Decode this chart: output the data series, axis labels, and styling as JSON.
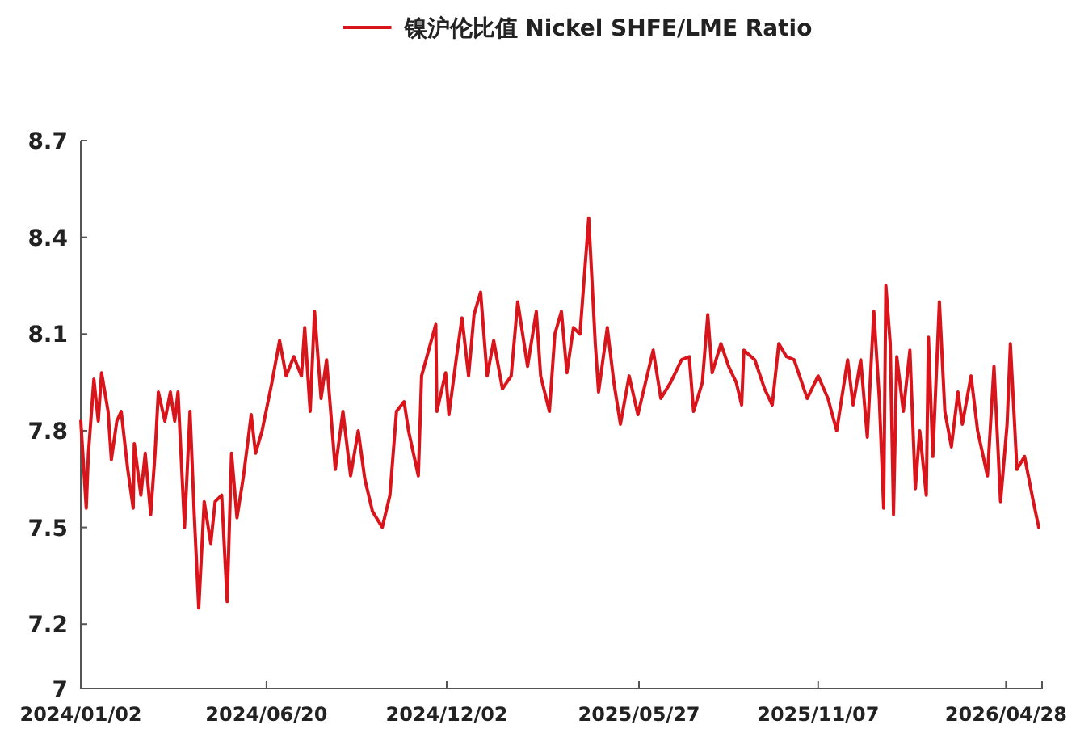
{
  "chart_data": {
    "type": "line",
    "legend": "top",
    "xlim": [
      "2024-01-02",
      "2026-05-31"
    ],
    "ylim": [
      7,
      8.7
    ],
    "xticks": [
      {
        "value": "2024-01-02",
        "label": "2024/01/02"
      },
      {
        "value": "2024-06-20",
        "label": "2024/06/20"
      },
      {
        "value": "2024-12-02",
        "label": "2024/12/02"
      },
      {
        "value": "2025-05-27",
        "label": "2025/05/27"
      },
      {
        "value": "2025-11-07",
        "label": "2025/11/07"
      },
      {
        "value": "2026-04-28",
        "label": "2026/04/28"
      }
    ],
    "yticks": [
      7,
      7.2,
      7.5,
      7.8,
      8.1,
      8.4,
      8.7
    ],
    "series": [
      {
        "name": "镍沪伦比值 Nickel SHFE/LME Ratio",
        "color": "#d9141b",
        "x": [
          "2024-01-02",
          "2024-01-07",
          "2024-01-09",
          "2024-01-14",
          "2024-01-18",
          "2024-01-21",
          "2024-01-27",
          "2024-01-30",
          "2024-02-04",
          "2024-02-08",
          "2024-02-14",
          "2024-02-19",
          "2024-02-20",
          "2024-02-26",
          "2024-03-01",
          "2024-03-06",
          "2024-03-10",
          "2024-03-13",
          "2024-03-19",
          "2024-03-24",
          "2024-03-28",
          "2024-03-31",
          "2024-04-06",
          "2024-04-11",
          "2024-04-15",
          "2024-04-19",
          "2024-04-24",
          "2024-04-30",
          "2024-05-04",
          "2024-05-10",
          "2024-05-15",
          "2024-05-19",
          "2024-05-24",
          "2024-05-30",
          "2024-06-06",
          "2024-06-10",
          "2024-06-16",
          "2024-06-25",
          "2024-07-02",
          "2024-07-08",
          "2024-07-15",
          "2024-07-22",
          "2024-07-25",
          "2024-07-30",
          "2024-08-03",
          "2024-08-09",
          "2024-08-14",
          "2024-08-22",
          "2024-08-29",
          "2024-09-05",
          "2024-09-12",
          "2024-09-18",
          "2024-09-25",
          "2024-10-04",
          "2024-10-11",
          "2024-10-17",
          "2024-10-24",
          "2024-10-28",
          "2024-11-06",
          "2024-11-09",
          "2024-11-22",
          "2024-11-23",
          "2024-12-01",
          "2024-12-04",
          "2024-12-11",
          "2024-12-16",
          "2024-12-22",
          "2024-12-27",
          "2025-01-02",
          "2025-01-08",
          "2025-01-14",
          "2025-01-22",
          "2025-01-30",
          "2025-02-05",
          "2025-02-14",
          "2025-02-22",
          "2025-02-26",
          "2025-03-06",
          "2025-03-11",
          "2025-03-17",
          "2025-03-22",
          "2025-03-28",
          "2025-04-03",
          "2025-04-11",
          "2025-04-17",
          "2025-04-20",
          "2025-04-28",
          "2025-05-04",
          "2025-05-10",
          "2025-05-18",
          "2025-05-26",
          "2025-06-02",
          "2025-06-09",
          "2025-06-16",
          "2025-06-25",
          "2025-07-05",
          "2025-07-12",
          "2025-07-16",
          "2025-07-24",
          "2025-07-29",
          "2025-08-02",
          "2025-08-10",
          "2025-08-17",
          "2025-08-24",
          "2025-08-29",
          "2025-08-31",
          "2025-09-10",
          "2025-09-19",
          "2025-09-26",
          "2025-10-02",
          "2025-10-09",
          "2025-10-16",
          "2025-10-28",
          "2025-11-07",
          "2025-11-16",
          "2025-11-24",
          "2025-12-04",
          "2025-12-09",
          "2025-12-16",
          "2025-12-22",
          "2025-12-28",
          "2026-01-02",
          "2026-01-06",
          "2026-01-08",
          "2026-01-12",
          "2026-01-15",
          "2026-01-18",
          "2026-01-24",
          "2026-01-30",
          "2026-02-04",
          "2026-02-08",
          "2026-02-14",
          "2026-02-16",
          "2026-02-20",
          "2026-02-26",
          "2026-03-03",
          "2026-03-09",
          "2026-03-15",
          "2026-03-19",
          "2026-03-27",
          "2026-04-02",
          "2026-04-11",
          "2026-04-17",
          "2026-04-23",
          "2026-04-29",
          "2026-05-02",
          "2026-05-08",
          "2026-05-15",
          "2026-05-23",
          "2026-05-28"
        ],
        "values": [
          7.83,
          7.56,
          7.73,
          7.96,
          7.83,
          7.98,
          7.86,
          7.71,
          7.83,
          7.86,
          7.68,
          7.56,
          7.76,
          7.6,
          7.73,
          7.54,
          7.73,
          7.92,
          7.83,
          7.92,
          7.83,
          7.92,
          7.5,
          7.86,
          7.53,
          7.25,
          7.58,
          7.45,
          7.58,
          7.6,
          7.27,
          7.73,
          7.53,
          7.66,
          7.85,
          7.73,
          7.8,
          7.95,
          8.08,
          7.97,
          8.03,
          7.97,
          8.12,
          7.86,
          8.17,
          7.9,
          8.02,
          7.68,
          7.86,
          7.66,
          7.8,
          7.65,
          7.55,
          7.5,
          7.6,
          7.86,
          7.89,
          7.8,
          7.66,
          7.97,
          8.13,
          7.86,
          7.98,
          7.85,
          8.03,
          8.15,
          7.97,
          8.16,
          8.23,
          7.97,
          8.08,
          7.93,
          7.97,
          8.2,
          8.0,
          8.17,
          7.97,
          7.86,
          8.1,
          8.17,
          7.98,
          8.12,
          8.1,
          8.46,
          8.07,
          7.92,
          8.12,
          7.95,
          7.82,
          7.97,
          7.85,
          7.95,
          8.05,
          7.9,
          7.95,
          8.02,
          8.03,
          7.86,
          7.95,
          8.16,
          7.98,
          8.07,
          8.0,
          7.95,
          7.88,
          8.05,
          8.02,
          7.93,
          7.88,
          8.07,
          8.03,
          8.02,
          7.9,
          7.97,
          7.9,
          7.8,
          8.02,
          7.88,
          8.02,
          7.78,
          8.17,
          7.9,
          7.56,
          8.25,
          8.07,
          7.54,
          8.03,
          7.86,
          8.05,
          7.62,
          7.8,
          7.6,
          8.09,
          7.72,
          8.2,
          7.86,
          7.75,
          7.92,
          7.82,
          7.97,
          7.8,
          7.66,
          8.0,
          7.58,
          7.82,
          8.07,
          7.68,
          7.72,
          7.58,
          7.5
        ]
      }
    ]
  }
}
